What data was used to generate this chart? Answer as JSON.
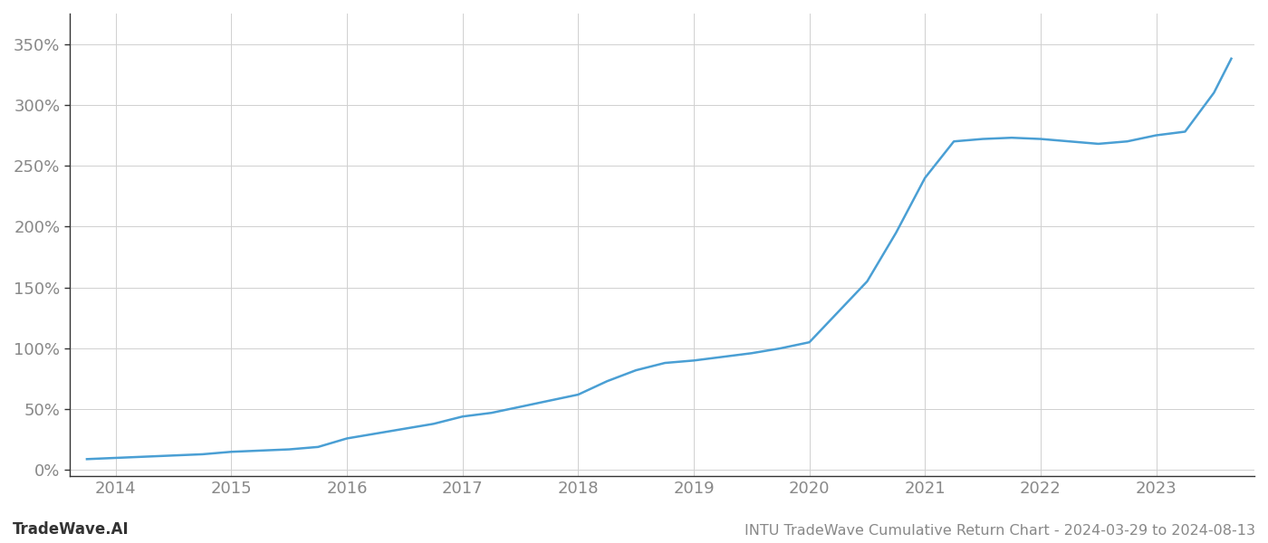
{
  "title": "INTU TradeWave Cumulative Return Chart - 2024-03-29 to 2024-08-13",
  "watermark": "TradeWave.AI",
  "line_color": "#4a9fd4",
  "background_color": "#ffffff",
  "grid_color": "#d0d0d0",
  "x_values": [
    2013.75,
    2014.0,
    2014.25,
    2014.5,
    2014.75,
    2015.0,
    2015.25,
    2015.5,
    2015.75,
    2016.0,
    2016.25,
    2016.5,
    2016.75,
    2017.0,
    2017.25,
    2017.5,
    2017.75,
    2018.0,
    2018.25,
    2018.5,
    2018.75,
    2019.0,
    2019.25,
    2019.5,
    2019.75,
    2020.0,
    2020.25,
    2020.5,
    2020.75,
    2021.0,
    2021.25,
    2021.5,
    2021.75,
    2022.0,
    2022.25,
    2022.5,
    2022.75,
    2023.0,
    2023.25,
    2023.5,
    2023.65
  ],
  "y_values": [
    9,
    10,
    11,
    12,
    13,
    15,
    16,
    17,
    19,
    26,
    30,
    34,
    38,
    44,
    47,
    52,
    57,
    62,
    73,
    82,
    88,
    90,
    93,
    96,
    100,
    105,
    130,
    155,
    195,
    240,
    270,
    272,
    273,
    272,
    270,
    268,
    270,
    275,
    278,
    310,
    338
  ],
  "xlim": [
    2013.6,
    2023.85
  ],
  "ylim": [
    -5,
    375
  ],
  "yticks": [
    0,
    50,
    100,
    150,
    200,
    250,
    300,
    350
  ],
  "xticks": [
    2014,
    2015,
    2016,
    2017,
    2018,
    2019,
    2020,
    2021,
    2022,
    2023
  ],
  "line_width": 1.8,
  "title_fontsize": 11.5,
  "tick_fontsize": 13,
  "watermark_fontsize": 12
}
